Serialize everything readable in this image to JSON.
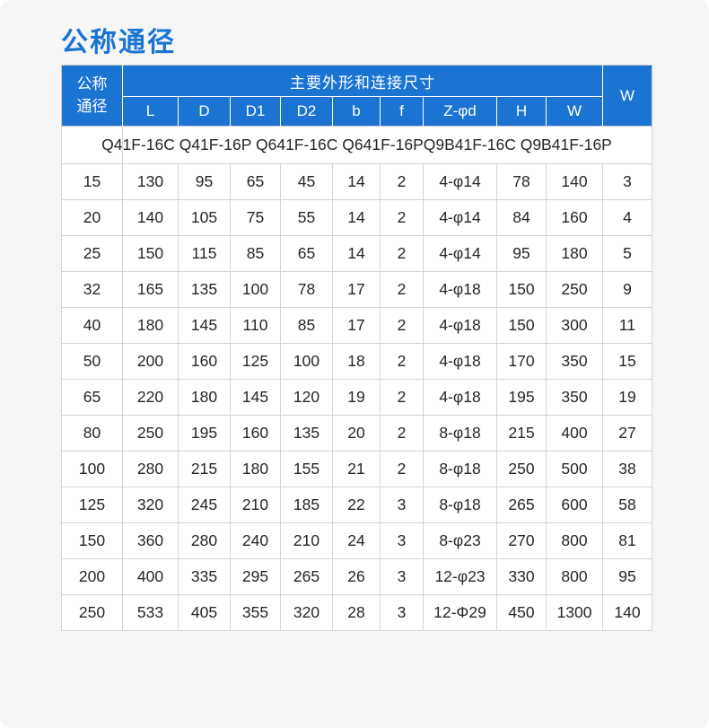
{
  "page": {
    "title": "公称通径"
  },
  "colors": {
    "accent_blue": "#1b74d2",
    "page_background": "#f6f6f6",
    "body_border": "#d4d4d4",
    "header_separator": "#c9c9c9",
    "text": "#262626",
    "header_text": "#ffffff"
  },
  "table": {
    "header": {
      "nominal_line1": "公称",
      "nominal_line2": "通径",
      "group": "主要外形和连接尺寸",
      "sub_columns": [
        "L",
        "D",
        "D1",
        "D2",
        "b",
        "f",
        "Z-φd",
        "H",
        "W"
      ],
      "col_w_outer": "W"
    },
    "model_row": "Q41F-16C Q41F-16P Q641F-16C Q641F-16PQ9B41F-16C Q9B41F-16P",
    "rows": [
      [
        "15",
        "130",
        "95",
        "65",
        "45",
        "14",
        "2",
        "4-φ14",
        "78",
        "140",
        "3"
      ],
      [
        "20",
        "140",
        "105",
        "75",
        "55",
        "14",
        "2",
        "4-φ14",
        "84",
        "160",
        "4"
      ],
      [
        "25",
        "150",
        "115",
        "85",
        "65",
        "14",
        "2",
        "4-φ14",
        "95",
        "180",
        "5"
      ],
      [
        "32",
        "165",
        "135",
        "100",
        "78",
        "17",
        "2",
        "4-φ18",
        "150",
        "250",
        "9"
      ],
      [
        "40",
        "180",
        "145",
        "110",
        "85",
        "17",
        "2",
        "4-φ18",
        "150",
        "300",
        "11"
      ],
      [
        "50",
        "200",
        "160",
        "125",
        "100",
        "18",
        "2",
        "4-φ18",
        "170",
        "350",
        "15"
      ],
      [
        "65",
        "220",
        "180",
        "145",
        "120",
        "19",
        "2",
        "4-φ18",
        "195",
        "350",
        "19"
      ],
      [
        "80",
        "250",
        "195",
        "160",
        "135",
        "20",
        "2",
        "8-φ18",
        "215",
        "400",
        "27"
      ],
      [
        "100",
        "280",
        "215",
        "180",
        "155",
        "21",
        "2",
        "8-φ18",
        "250",
        "500",
        "38"
      ],
      [
        "125",
        "320",
        "245",
        "210",
        "185",
        "22",
        "3",
        "8-φ18",
        "265",
        "600",
        "58"
      ],
      [
        "150",
        "360",
        "280",
        "240",
        "210",
        "24",
        "3",
        "8-φ23",
        "270",
        "800",
        "81"
      ],
      [
        "200",
        "400",
        "335",
        "295",
        "265",
        "26",
        "3",
        "12-φ23",
        "330",
        "800",
        "95"
      ],
      [
        "250",
        "533",
        "405",
        "355",
        "320",
        "28",
        "3",
        "12-Φ29",
        "450",
        "1300",
        "140"
      ]
    ]
  },
  "chart_data": {
    "type": "table",
    "title": "公称通径",
    "columns": [
      "公称通径",
      "L",
      "D",
      "D1",
      "D2",
      "b",
      "f",
      "Z-φd",
      "H",
      "W",
      "W"
    ],
    "column_group": "主要外形和连接尺寸",
    "models": "Q41F-16C Q41F-16P Q641F-16C Q641F-16PQ9B41F-16C Q9B41F-16P",
    "rows": [
      [
        15,
        130,
        95,
        65,
        45,
        14,
        2,
        "4-φ14",
        78,
        140,
        3
      ],
      [
        20,
        140,
        105,
        75,
        55,
        14,
        2,
        "4-φ14",
        84,
        160,
        4
      ],
      [
        25,
        150,
        115,
        85,
        65,
        14,
        2,
        "4-φ14",
        95,
        180,
        5
      ],
      [
        32,
        165,
        135,
        100,
        78,
        17,
        2,
        "4-φ18",
        150,
        250,
        9
      ],
      [
        40,
        180,
        145,
        110,
        85,
        17,
        2,
        "4-φ18",
        150,
        300,
        11
      ],
      [
        50,
        200,
        160,
        125,
        100,
        18,
        2,
        "4-φ18",
        170,
        350,
        15
      ],
      [
        65,
        220,
        180,
        145,
        120,
        19,
        2,
        "4-φ18",
        195,
        350,
        19
      ],
      [
        80,
        250,
        195,
        160,
        135,
        20,
        2,
        "8-φ18",
        215,
        400,
        27
      ],
      [
        100,
        280,
        215,
        180,
        155,
        21,
        2,
        "8-φ18",
        250,
        500,
        38
      ],
      [
        125,
        320,
        245,
        210,
        185,
        22,
        3,
        "8-φ18",
        265,
        600,
        58
      ],
      [
        150,
        360,
        280,
        240,
        210,
        24,
        3,
        "8-φ23",
        270,
        800,
        81
      ],
      [
        200,
        400,
        335,
        295,
        265,
        26,
        3,
        "12-φ23",
        330,
        800,
        95
      ],
      [
        250,
        533,
        405,
        355,
        320,
        28,
        3,
        "12-Φ29",
        450,
        1300,
        140
      ]
    ]
  }
}
